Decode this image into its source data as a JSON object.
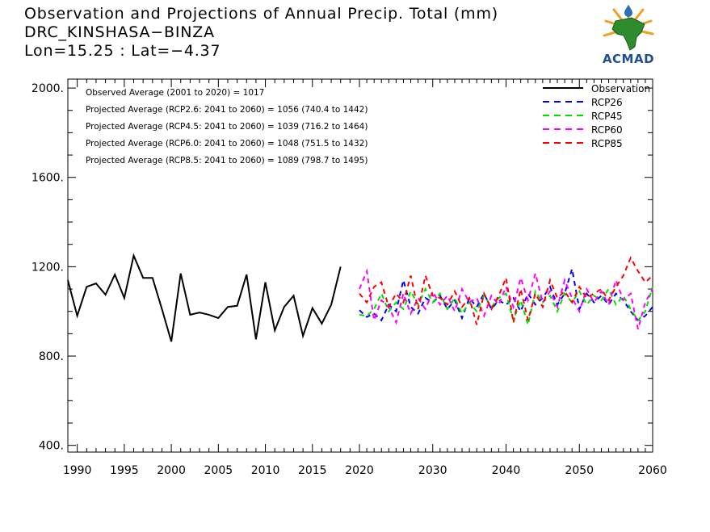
{
  "header": {
    "title": "Observation and Projections of Annual Precip. Total (mm)",
    "location": "DRC_KINSHASA−BINZA",
    "coords": "Lon=15.25 : Lat=−4.37"
  },
  "logo": {
    "text": "ACMAD",
    "colors": {
      "africa": "#2e8b2e",
      "rays": "#f0a020",
      "drop": "#2a6fb8",
      "text": "#1f4f8f"
    }
  },
  "chart_data": {
    "type": "line",
    "ylim": [
      370,
      2040
    ],
    "yticks": [
      400,
      800,
      1200,
      1600,
      2000
    ],
    "ytick_labels": [
      "400.",
      "800.",
      "1200.",
      "1600.",
      "2000."
    ],
    "xticks": [
      1990,
      1995,
      2000,
      2005,
      2010,
      2015,
      2020,
      2030,
      2040,
      2050,
      2060
    ],
    "annotations": [
      "Observed Average (2001 to 2020) = 1017",
      "Projected Average (RCP2.6: 2041 to 2060) = 1056 (740.4 to 1442)",
      "Projected Average (RCP4.5: 2041 to 2060) = 1039 (716.2 to 1464)",
      "Projected Average (RCP6.0: 2041 to 2060) = 1048 (751.5 to 1432)",
      "Projected Average (RCP8.5: 2041 to 2060) = 1089 (798.7 to 1495)"
    ],
    "legend_position": "top-right",
    "series": [
      {
        "name": "Observation",
        "color": "#000000",
        "dash": false,
        "x": [
          1989,
          1990,
          1991,
          1992,
          1993,
          1994,
          1995,
          1996,
          1997,
          1998,
          1999,
          2000,
          2001,
          2002,
          2003,
          2004,
          2005,
          2006,
          2007,
          2008,
          2009,
          2010,
          2011,
          2012,
          2013,
          2014,
          2015,
          2016,
          2017,
          2018,
          2019,
          2020
        ],
        "values": [
          1140,
          980,
          1110,
          1125,
          1075,
          1165,
          1060,
          1250,
          1150,
          1150,
          1010,
          865,
          1170,
          985,
          995,
          985,
          970,
          1020,
          1025,
          1165,
          875,
          1130,
          915,
          1020,
          1070,
          890,
          1015,
          945,
          1030,
          1200,
          null,
          null
        ]
      },
      {
        "name": "RCP26",
        "color": "#0000ff",
        "dash": true,
        "x": [
          2020,
          2021,
          2022,
          2023,
          2024,
          2025,
          2026,
          2027,
          2028,
          2029,
          2030,
          2031,
          2032,
          2033,
          2034,
          2035,
          2036,
          2037,
          2038,
          2039,
          2040,
          2041,
          2042,
          2043,
          2044,
          2045,
          2046,
          2047,
          2048,
          2049,
          2050,
          2051,
          2052,
          2053,
          2054,
          2055,
          2056,
          2057,
          2058,
          2059,
          2060
        ],
        "values": [
          1005,
          975,
          990,
          960,
          1030,
          1000,
          1140,
          1020,
          990,
          1060,
          1040,
          1070,
          1010,
          1050,
          970,
          1060,
          1020,
          1080,
          1010,
          1050,
          1030,
          1060,
          1000,
          1080,
          1030,
          1060,
          1110,
          1030,
          1080,
          1190,
          1010,
          1080,
          1040,
          1070,
          1030,
          1080,
          1050,
          1000,
          960,
          980,
          1020
        ]
      },
      {
        "name": "RCP45",
        "color": "#00e000",
        "dash": true,
        "x": [
          2020,
          2021,
          2022,
          2023,
          2024,
          2025,
          2026,
          2027,
          2028,
          2029,
          2030,
          2031,
          2032,
          2033,
          2034,
          2035,
          2036,
          2037,
          2038,
          2039,
          2040,
          2041,
          2042,
          2043,
          2044,
          2045,
          2046,
          2047,
          2048,
          2049,
          2050,
          2051,
          2052,
          2053,
          2054,
          2055,
          2056,
          2057,
          2058,
          2059,
          2060
        ],
        "values": [
          985,
          980,
          1010,
          1080,
          1000,
          1040,
          1010,
          1090,
          1030,
          1100,
          1040,
          1080,
          1010,
          1060,
          990,
          1040,
          1000,
          1070,
          1020,
          1060,
          1080,
          960,
          1050,
          940,
          1090,
          1040,
          1070,
          1000,
          1080,
          1040,
          1090,
          1030,
          1070,
          1050,
          1100,
          1030,
          1070,
          1010,
          960,
          1000,
          1110
        ]
      },
      {
        "name": "RCP60",
        "color": "#ff00ff",
        "dash": true,
        "x": [
          2020,
          2021,
          2022,
          2023,
          2024,
          2025,
          2026,
          2027,
          2028,
          2029,
          2030,
          2031,
          2032,
          2033,
          2034,
          2035,
          2036,
          2037,
          2038,
          2039,
          2040,
          2041,
          2042,
          2043,
          2044,
          2045,
          2046,
          2047,
          2048,
          2049,
          2050,
          2051,
          2052,
          2053,
          2054,
          2055,
          2056,
          2057,
          2058,
          2059,
          2060
        ],
        "values": [
          1100,
          1180,
          960,
          1050,
          1020,
          950,
          1080,
          990,
          1060,
          1010,
          1090,
          1030,
          1070,
          1000,
          1100,
          1040,
          1060,
          980,
          1070,
          1030,
          1110,
          1020,
          1150,
          1050,
          1170,
          1040,
          1090,
          1020,
          1140,
          1060,
          1000,
          1100,
          1040,
          1090,
          1030,
          1140,
          1050,
          1080,
          920,
          1040,
          1100
        ]
      },
      {
        "name": "RCP85",
        "color": "#ff0000",
        "dash": true,
        "x": [
          2020,
          2021,
          2022,
          2023,
          2024,
          2025,
          2026,
          2027,
          2028,
          2029,
          2030,
          2031,
          2032,
          2033,
          2034,
          2035,
          2036,
          2037,
          2038,
          2039,
          2040,
          2041,
          2042,
          2043,
          2044,
          2045,
          2046,
          2047,
          2048,
          2049,
          2050,
          2051,
          2052,
          2053,
          2054,
          2055,
          2056,
          2057,
          2058,
          2059,
          2060
        ],
        "values": [
          1080,
          1040,
          1110,
          1130,
          1020,
          1080,
          1040,
          1160,
          1010,
          1160,
          1070,
          1060,
          1030,
          1090,
          1020,
          1060,
          940,
          1080,
          1010,
          1070,
          1150,
          950,
          1100,
          960,
          1080,
          1020,
          1140,
          1060,
          1090,
          1040,
          1110,
          1060,
          1080,
          1100,
          1050,
          1110,
          1160,
          1240,
          1180,
          1130,
          1160
        ]
      }
    ]
  }
}
